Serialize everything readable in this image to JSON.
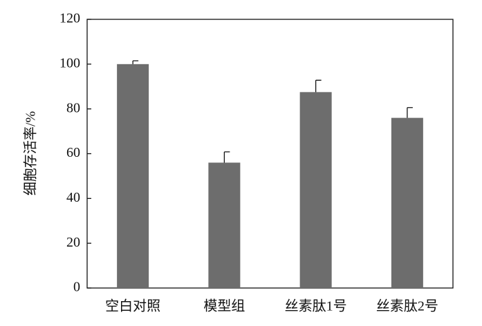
{
  "chart_data": {
    "type": "bar",
    "ylabel": "细胞存活率/%",
    "categories": [
      "空白对照",
      "模型组",
      "丝素肽1号",
      "丝素肽2号"
    ],
    "values": [
      100,
      56,
      87.5,
      76
    ],
    "errors": [
      1.5,
      4.8,
      5.3,
      4.6
    ],
    "color": "#6d6d6d",
    "ylim": [
      0,
      120
    ],
    "yticks": [
      0,
      20,
      40,
      60,
      80,
      100,
      120
    ],
    "grid": false
  }
}
